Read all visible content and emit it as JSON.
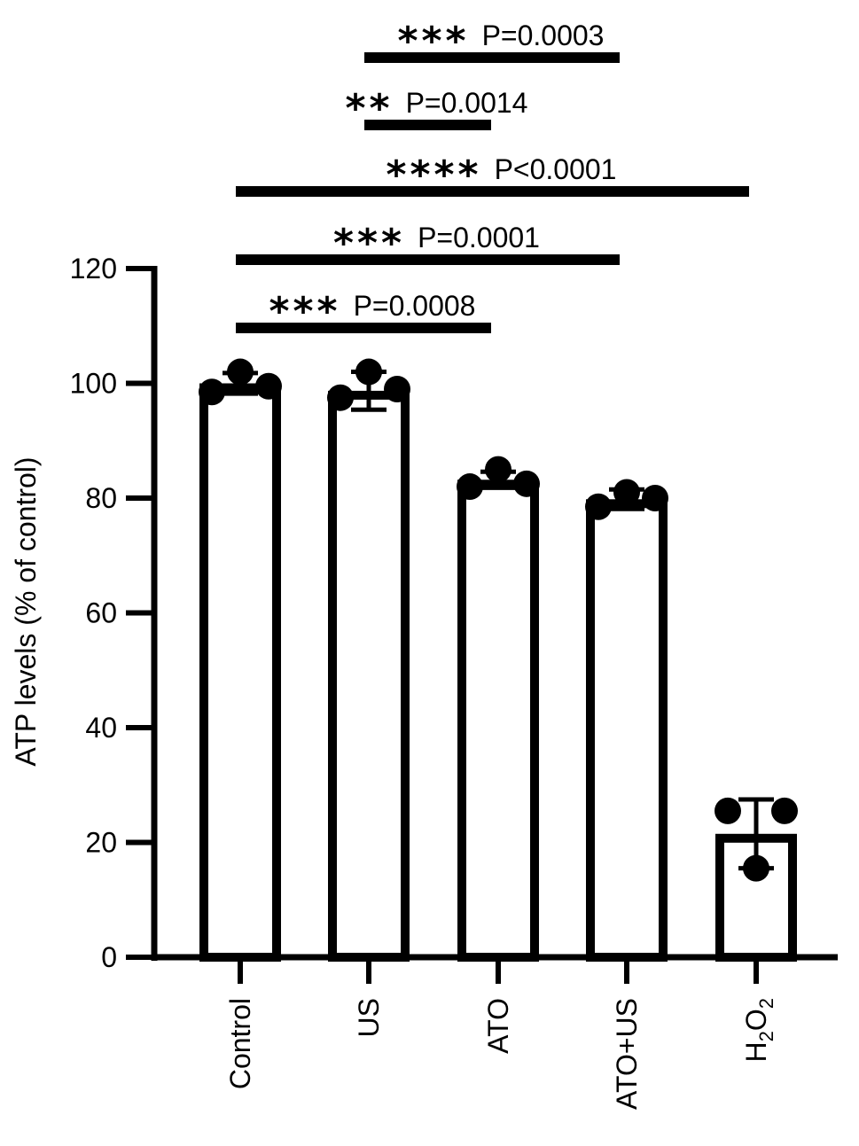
{
  "chart_data": {
    "type": "bar",
    "categories": [
      "Control",
      "US",
      "ATO",
      "ATO+US",
      "H2O2"
    ],
    "category_labels": [
      {
        "text": "Control"
      },
      {
        "text": "US"
      },
      {
        "text": "ATO"
      },
      {
        "text": "ATO+US"
      },
      {
        "text": "H",
        "sub1": "2",
        "mid": "O",
        "sub2": "2"
      }
    ],
    "values": [
      100,
      98.7,
      83.2,
      79.8,
      21.5
    ],
    "errors": [
      1.8,
      3.3,
      1.4,
      1.7,
      6.0
    ],
    "points": [
      [
        98.5,
        102.0,
        99.5
      ],
      [
        97.5,
        102.0,
        99.0
      ],
      [
        82.0,
        85.0,
        82.5
      ],
      [
        78.5,
        81.0,
        80.0
      ],
      [
        25.5,
        15.5,
        25.5
      ]
    ],
    "ylabel": "ATP levels (% of control)",
    "xlabel": "",
    "ylim": [
      0,
      120
    ],
    "yticks": [
      "0",
      "20",
      "40",
      "60",
      "80",
      "100",
      "120"
    ],
    "significance": [
      {
        "from": 1,
        "to": 3,
        "stars": "***",
        "p": "P=0.0003"
      },
      {
        "from": 1,
        "to": 2,
        "stars": "**",
        "p": "P=0.0014"
      },
      {
        "from": 0,
        "to": 4,
        "stars": "****",
        "p": "P<0.0001"
      },
      {
        "from": 0,
        "to": 3,
        "stars": "***",
        "p": "P=0.0001"
      },
      {
        "from": 0,
        "to": 2,
        "stars": "***",
        "p": "P=0.0008"
      }
    ],
    "colors": {
      "bar_fill": "#ffffff",
      "stroke": "#000000",
      "point": "#000000"
    }
  }
}
